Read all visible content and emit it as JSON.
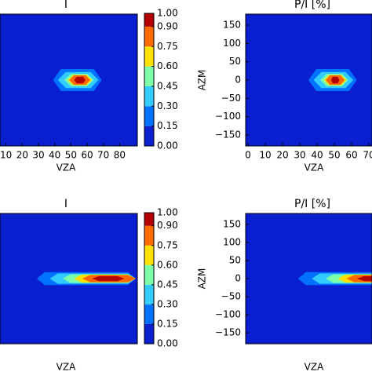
{
  "chart_data": [
    {
      "type": "contour",
      "title": "I",
      "xlabel": "VZA",
      "xlim": [
        0,
        90
      ],
      "ylim": [
        -180,
        180
      ],
      "xticks": [
        10,
        20,
        30,
        40,
        50,
        60,
        70,
        80
      ],
      "levels": [
        {
          "value": 0,
          "label": "0.00"
        },
        {
          "value": 0.15,
          "label": "0.15"
        },
        {
          "value": 0.3,
          "label": "0.30"
        },
        {
          "value": 0.45,
          "label": "0.45"
        },
        {
          "value": 0.6,
          "label": "0.60"
        },
        {
          "value": 0.75,
          "label": "0.75"
        },
        {
          "value": 0.9,
          "label": "0.90"
        },
        {
          "value": 1,
          "label": "1.00"
        }
      ],
      "colors": [
        "#0a1fd0",
        "#0072ff",
        "#33ccff",
        "#7dffaa",
        "#ffe100",
        "#ff6a00",
        "#b40000"
      ],
      "regions": [
        {
          "level": 0.15,
          "vza": [
            39,
            69
          ],
          "azm": 30
        },
        {
          "level": 0.3,
          "vza": [
            42,
            67
          ],
          "azm": 22
        },
        {
          "level": 0.45,
          "vza": [
            46,
            64
          ],
          "azm": 17
        },
        {
          "level": 0.6,
          "vza": [
            48,
            63
          ],
          "azm": 14
        },
        {
          "level": 0.75,
          "vza": [
            49,
            62
          ],
          "azm": 13
        },
        {
          "level": 0.9,
          "vza": [
            52,
            59
          ],
          "azm": 9
        }
      ]
    },
    {
      "type": "contour",
      "title": "P/I [%]",
      "xlabel": "VZA",
      "ylabel": "AZM",
      "xlim": [
        0,
        90
      ],
      "ylim": [
        -180,
        180
      ],
      "xticks": [
        0,
        10,
        20,
        30,
        40,
        50,
        60,
        70
      ],
      "yticks": [
        {
          "value": -150,
          "label": "−150"
        },
        {
          "value": -100,
          "label": "−100"
        },
        {
          "value": -50,
          "label": "−50"
        },
        0,
        50,
        100,
        150
      ],
      "colors": [
        "#0a1fd0",
        "#0072ff",
        "#33ccff",
        "#7dffaa",
        "#ffe100",
        "#ff6a00",
        "#b40000"
      ],
      "levels": [
        {
          "value": 0,
          "label": "0.00"
        },
        {
          "value": 0.15,
          "label": "0.15"
        },
        {
          "value": 0.3,
          "label": "0.30"
        },
        {
          "value": 0.45,
          "label": "0.45"
        },
        {
          "value": 0.6,
          "label": "0.60"
        },
        {
          "value": 0.75,
          "label": "0.75"
        },
        {
          "value": 0.9,
          "label": "0.90"
        },
        {
          "value": 1,
          "label": "1.00"
        }
      ],
      "regions": [
        {
          "level": 0.15,
          "vza": [
            35,
            63
          ],
          "azm": 30
        },
        {
          "level": 0.3,
          "vza": [
            38,
            61
          ],
          "azm": 22
        },
        {
          "level": 0.45,
          "vza": [
            42,
            58
          ],
          "azm": 17
        },
        {
          "level": 0.6,
          "vza": [
            44,
            57
          ],
          "azm": 14
        },
        {
          "level": 0.75,
          "vza": [
            45,
            56
          ],
          "azm": 13
        },
        {
          "level": 0.9,
          "vza": [
            48,
            53
          ],
          "azm": 9
        }
      ]
    },
    {
      "type": "contour",
      "title": "I",
      "xlabel": "VZA",
      "xlim": [
        0,
        90
      ],
      "ylim": [
        -180,
        180
      ],
      "levels": [
        {
          "value": 0,
          "label": "0.00"
        },
        {
          "value": 0.15,
          "label": "0.15"
        },
        {
          "value": 0.3,
          "label": "0.30"
        },
        {
          "value": 0.45,
          "label": "0.45"
        },
        {
          "value": 0.6,
          "label": "0.60"
        },
        {
          "value": 0.75,
          "label": "0.75"
        },
        {
          "value": 0.9,
          "label": "0.90"
        },
        {
          "value": 1,
          "label": "1.00"
        }
      ],
      "colors": [
        "#0a1fd0",
        "#0072ff",
        "#33ccff",
        "#7dffaa",
        "#ffe100",
        "#ff6a00",
        "#b40000"
      ],
      "regions": [
        {
          "level": 0.15,
          "vza": [
            29,
            90
          ],
          "azm": 18
        },
        {
          "level": 0.3,
          "vza": [
            37,
            90
          ],
          "azm": 14
        },
        {
          "level": 0.45,
          "vza": [
            45,
            90
          ],
          "azm": 12
        },
        {
          "level": 0.6,
          "vza": [
            52,
            90
          ],
          "azm": 11
        },
        {
          "level": 0.75,
          "vza": [
            57,
            90
          ],
          "azm": 10
        },
        {
          "level": 0.9,
          "vza": [
            63,
            83
          ],
          "azm": 7
        }
      ]
    },
    {
      "type": "contour",
      "title": "P/I [%]",
      "xlabel": "VZA",
      "ylabel": "AZM",
      "xlim": [
        0,
        90
      ],
      "ylim": [
        -180,
        180
      ],
      "yticks": [
        {
          "value": -150,
          "label": "−150"
        },
        {
          "value": -100,
          "label": "−100"
        },
        {
          "value": -50,
          "label": "−50"
        },
        0,
        50,
        100,
        150
      ],
      "colors": [
        "#0a1fd0",
        "#0072ff",
        "#33ccff",
        "#7dffaa",
        "#ffe100",
        "#ff6a00",
        "#b40000"
      ],
      "levels": [
        {
          "value": 0,
          "label": "0.00"
        },
        {
          "value": 0.15,
          "label": "0.15"
        },
        {
          "value": 0.3,
          "label": "0.30"
        },
        {
          "value": 0.45,
          "label": "0.45"
        },
        {
          "value": 0.6,
          "label": "0.60"
        },
        {
          "value": 0.75,
          "label": "0.75"
        },
        {
          "value": 0.9,
          "label": "0.90"
        },
        {
          "value": 1,
          "label": "1.00"
        }
      ],
      "regions": [
        {
          "level": 0.15,
          "vza": [
            29,
            90
          ],
          "azm": 18
        },
        {
          "level": 0.3,
          "vza": [
            37,
            90
          ],
          "azm": 14
        },
        {
          "level": 0.45,
          "vza": [
            45,
            90
          ],
          "azm": 12
        },
        {
          "level": 0.6,
          "vza": [
            52,
            90
          ],
          "azm": 11
        },
        {
          "level": 0.75,
          "vza": [
            57,
            90
          ],
          "azm": 10
        },
        {
          "level": 0.9,
          "vza": [
            63,
            83
          ],
          "azm": 7
        }
      ]
    }
  ]
}
